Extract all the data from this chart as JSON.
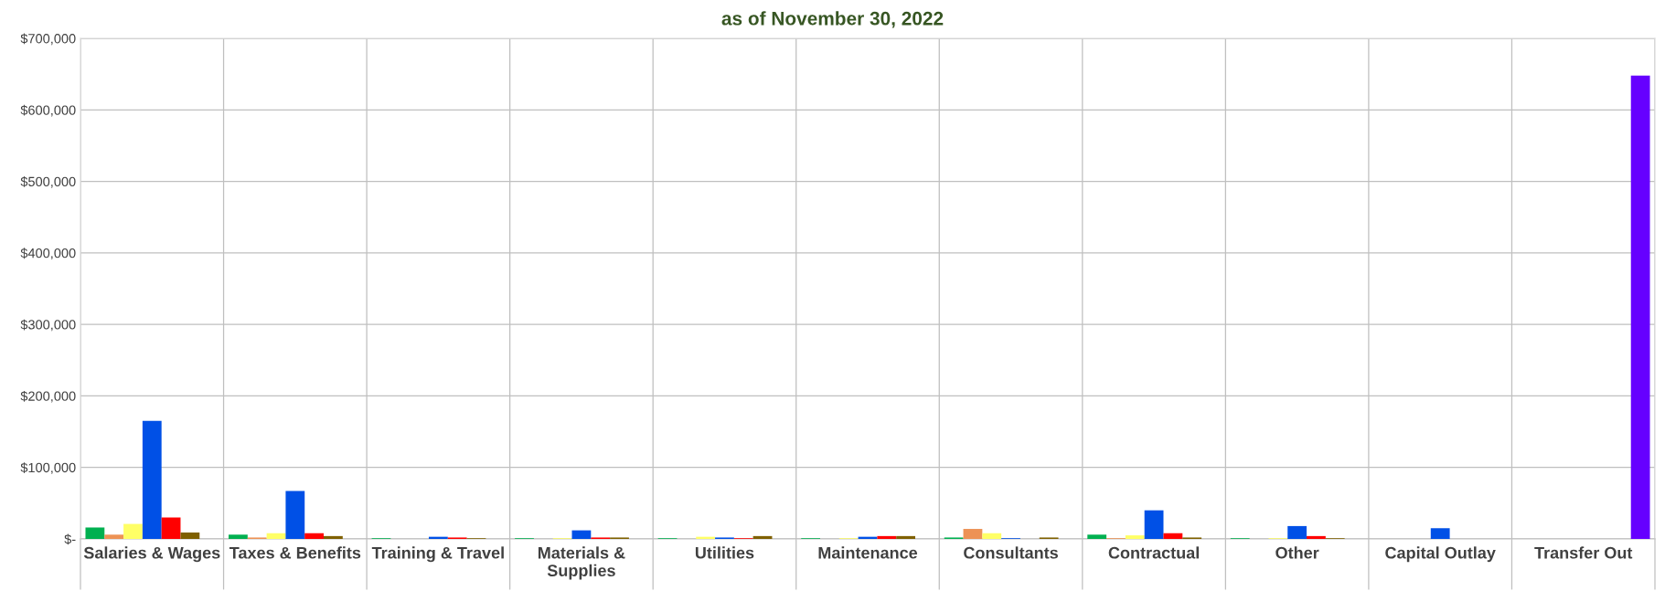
{
  "chart_data": {
    "type": "bar",
    "title": "as of November 30, 2022",
    "categories": [
      "Salaries & Wages",
      "Taxes & Benefits",
      "Training & Travel",
      "Materials &\nSupplies",
      "Utilities",
      "Maintenance",
      "Consultants",
      "Contractual",
      "Other",
      "Capital Outlay",
      "Transfer Out"
    ],
    "series": [
      {
        "color": "#00b050",
        "values": [
          16000,
          6000,
          1000,
          1000,
          1000,
          1000,
          2000,
          6000,
          1000,
          0,
          0
        ]
      },
      {
        "color": "#ed9255",
        "values": [
          6000,
          2000,
          0,
          0,
          0,
          0,
          14000,
          1000,
          0,
          0,
          0
        ]
      },
      {
        "color": "#ffff66",
        "values": [
          21000,
          8000,
          0,
          1000,
          3000,
          1000,
          8000,
          5000,
          1000,
          0,
          0
        ]
      },
      {
        "color": "#0050e6",
        "values": [
          165000,
          67000,
          3000,
          12000,
          2000,
          3000,
          1000,
          40000,
          18000,
          15000,
          0
        ]
      },
      {
        "color": "#ff0000",
        "values": [
          30000,
          8000,
          2000,
          2000,
          1000,
          4000,
          0,
          8000,
          4000,
          0,
          0
        ]
      },
      {
        "color": "#7f6000",
        "values": [
          9000,
          4000,
          1000,
          2000,
          4000,
          4000,
          2000,
          2000,
          1000,
          0,
          0
        ]
      },
      {
        "color": "#6600ff",
        "values": [
          0,
          0,
          0,
          0,
          0,
          0,
          0,
          0,
          0,
          0,
          648000
        ]
      }
    ],
    "ylim": [
      0,
      700000
    ],
    "yticks": [
      {
        "value": 0,
        "label": "$-"
      },
      {
        "value": 100000,
        "label": "$100,000"
      },
      {
        "value": 200000,
        "label": "$200,000"
      },
      {
        "value": 300000,
        "label": "$300,000"
      },
      {
        "value": 400000,
        "label": "$400,000"
      },
      {
        "value": 500000,
        "label": "$500,000"
      },
      {
        "value": 600000,
        "label": "$600,000"
      },
      {
        "value": 700000,
        "label": "$700,000"
      }
    ],
    "grid": true
  }
}
